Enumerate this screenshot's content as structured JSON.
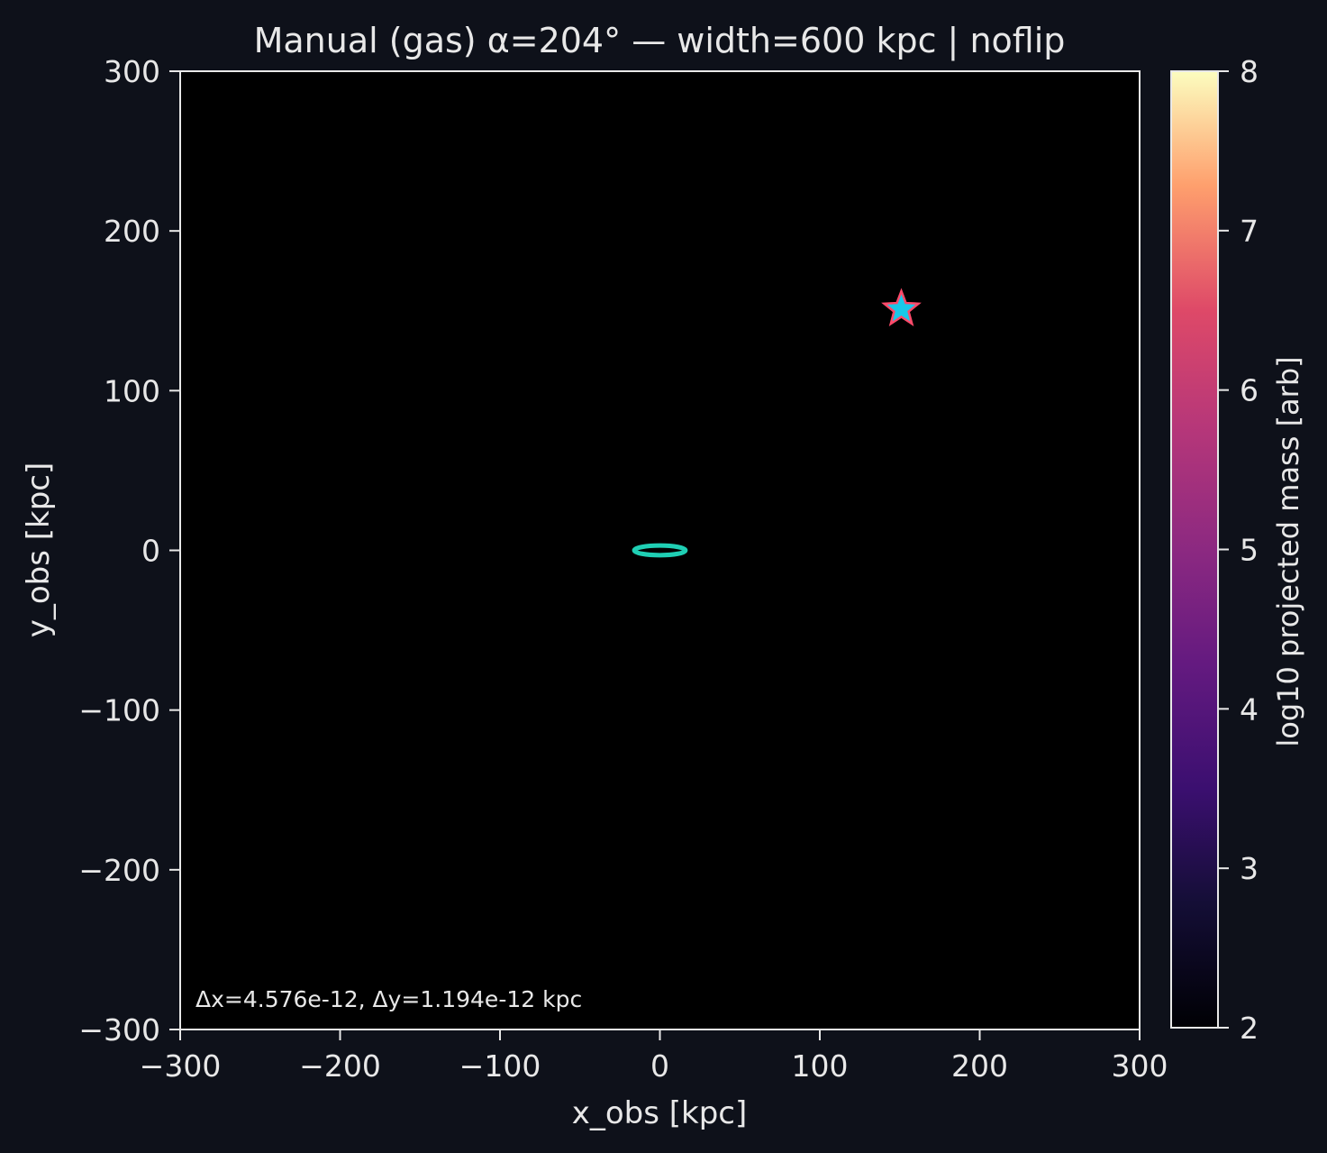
{
  "chart_data": {
    "type": "heatmap",
    "title": "Manual (gas)  α=204°  —  width=600 kpc  |  noflip",
    "xlabel": "x_obs [kpc]",
    "ylabel": "y_obs [kpc]",
    "xlim": [
      -300,
      300
    ],
    "ylim": [
      -300,
      300
    ],
    "xticks": [
      -300,
      -200,
      -100,
      0,
      100,
      200,
      300
    ],
    "yticks": [
      -300,
      -200,
      -100,
      0,
      100,
      200,
      300
    ],
    "xtick_labels": [
      "−300",
      "−200",
      "−100",
      "0",
      "100",
      "200",
      "300"
    ],
    "ytick_labels": [
      "−300",
      "−200",
      "−100",
      "0",
      "100",
      "200",
      "300"
    ],
    "image_background": "#000000",
    "colorbar": {
      "label": "log10 projected mass [arb]",
      "colormap": "magma",
      "range": [
        2,
        8
      ],
      "ticks": [
        2,
        3,
        4,
        5,
        6,
        7,
        8
      ],
      "tick_labels": [
        "2",
        "3",
        "4",
        "5",
        "6",
        "7",
        "8"
      ]
    },
    "markers": [
      {
        "kind": "ellipse",
        "center": [
          0,
          0
        ],
        "semi_axes_kpc": [
          16,
          3
        ],
        "color": "#1fcfb4"
      },
      {
        "kind": "star",
        "position": [
          151,
          151
        ],
        "fill": "#19c8e8",
        "edge": "#ff4a6a"
      }
    ],
    "annotation": "Δx=4.576e-12, Δy=1.194e-12 kpc",
    "grid": false
  },
  "colors": {
    "page_background": "#0e111a",
    "axes_frame": "#e8e8e8",
    "text": "#e8e8e8"
  }
}
